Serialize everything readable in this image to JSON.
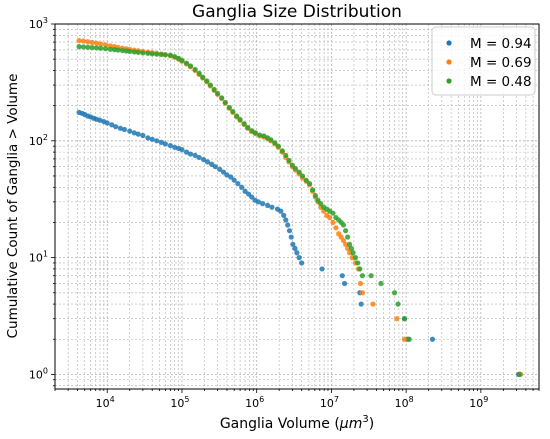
{
  "chart_data": {
    "type": "scatter",
    "title": "Ganglia Size Distribution",
    "xlabel_main": "Ganglia Volume (",
    "xlabel_mu": "μm",
    "xlabel_exp": "3",
    "xlabel_close": ")",
    "ylabel": "Cumulative Count of Ganglia > Volume",
    "xscale": "log",
    "yscale": "log",
    "xlim": [
      2000,
      6000000000
    ],
    "ylim": [
      0.75,
      1000
    ],
    "x_ticks": [
      {
        "value": 10000,
        "mantissa": "10",
        "exp": "4"
      },
      {
        "value": 100000,
        "mantissa": "10",
        "exp": "5"
      },
      {
        "value": 1000000,
        "mantissa": "10",
        "exp": "6"
      },
      {
        "value": 10000000,
        "mantissa": "10",
        "exp": "7"
      },
      {
        "value": 100000000,
        "mantissa": "10",
        "exp": "8"
      },
      {
        "value": 1000000000,
        "mantissa": "10",
        "exp": "9"
      }
    ],
    "y_ticks": [
      {
        "value": 1,
        "mantissa": "10",
        "exp": "0"
      },
      {
        "value": 10,
        "mantissa": "10",
        "exp": "1"
      },
      {
        "value": 100,
        "mantissa": "10",
        "exp": "2"
      },
      {
        "value": 1000,
        "mantissa": "10",
        "exp": "3"
      }
    ],
    "grid": true,
    "legend_position": "top-right",
    "series": [
      {
        "name": "M = 0.94",
        "color": "#1f77b4",
        "points": [
          [
            4200,
            175
          ],
          [
            4600,
            172
          ],
          [
            5000,
            168
          ],
          [
            5500,
            163
          ],
          [
            6000,
            160
          ],
          [
            6600,
            156
          ],
          [
            7200,
            153
          ],
          [
            8000,
            150
          ],
          [
            9000,
            146
          ],
          [
            10000,
            142
          ],
          [
            11500,
            137
          ],
          [
            13000,
            132
          ],
          [
            15000,
            128
          ],
          [
            17000,
            125
          ],
          [
            20000,
            121
          ],
          [
            23000,
            117
          ],
          [
            26000,
            114
          ],
          [
            30000,
            111
          ],
          [
            35000,
            106
          ],
          [
            40000,
            103
          ],
          [
            46000,
            100
          ],
          [
            53000,
            97
          ],
          [
            60000,
            94
          ],
          [
            70000,
            91
          ],
          [
            80000,
            88
          ],
          [
            90000,
            86
          ],
          [
            100000,
            84
          ],
          [
            115000,
            80
          ],
          [
            130000,
            77
          ],
          [
            150000,
            75
          ],
          [
            170000,
            72
          ],
          [
            195000,
            69
          ],
          [
            220000,
            66
          ],
          [
            250000,
            63
          ],
          [
            280000,
            60
          ],
          [
            320000,
            57
          ],
          [
            360000,
            54
          ],
          [
            400000,
            51
          ],
          [
            450000,
            49
          ],
          [
            500000,
            46
          ],
          [
            560000,
            43
          ],
          [
            630000,
            40
          ],
          [
            700000,
            37
          ],
          [
            780000,
            35
          ],
          [
            860000,
            33
          ],
          [
            950000,
            31
          ],
          [
            1050000,
            30
          ],
          [
            1200000,
            29
          ],
          [
            1400000,
            28
          ],
          [
            1600000,
            27
          ],
          [
            1900000,
            26
          ],
          [
            2100000,
            25
          ],
          [
            2300000,
            23
          ],
          [
            2450000,
            21
          ],
          [
            2600000,
            19
          ],
          [
            2750000,
            17
          ],
          [
            2900000,
            15
          ],
          [
            3050000,
            13
          ],
          [
            3250000,
            12
          ],
          [
            3450000,
            11
          ],
          [
            3700000,
            10
          ],
          [
            4000000,
            9
          ],
          [
            7500000,
            8
          ],
          [
            14000000,
            7
          ],
          [
            15000000,
            6
          ],
          [
            24000000,
            5
          ],
          [
            25000000,
            4
          ],
          [
            95000000,
            3
          ],
          [
            105000000,
            2
          ],
          [
            225000000,
            2
          ],
          [
            3200000000,
            1
          ]
        ]
      },
      {
        "name": "M = 0.69",
        "color": "#ff7f0e",
        "points": [
          [
            4200,
            720
          ],
          [
            4800,
            715
          ],
          [
            5500,
            705
          ],
          [
            6300,
            695
          ],
          [
            7200,
            685
          ],
          [
            8200,
            675
          ],
          [
            9500,
            663
          ],
          [
            11000,
            650
          ],
          [
            12500,
            640
          ],
          [
            14000,
            630
          ],
          [
            16000,
            620
          ],
          [
            18000,
            612
          ],
          [
            20000,
            605
          ],
          [
            23000,
            597
          ],
          [
            26000,
            590
          ],
          [
            30000,
            582
          ],
          [
            35000,
            575
          ],
          [
            40000,
            568
          ],
          [
            46000,
            560
          ],
          [
            53000,
            553
          ],
          [
            60000,
            545
          ],
          [
            70000,
            535
          ],
          [
            80000,
            520
          ],
          [
            90000,
            500
          ],
          [
            100000,
            480
          ],
          [
            115000,
            455
          ],
          [
            130000,
            430
          ],
          [
            150000,
            400
          ],
          [
            170000,
            370
          ],
          [
            190000,
            345
          ],
          [
            215000,
            320
          ],
          [
            240000,
            295
          ],
          [
            270000,
            270
          ],
          [
            300000,
            250
          ],
          [
            340000,
            230
          ],
          [
            380000,
            210
          ],
          [
            430000,
            190
          ],
          [
            480000,
            175
          ],
          [
            540000,
            160
          ],
          [
            600000,
            150
          ],
          [
            680000,
            138
          ],
          [
            760000,
            128
          ],
          [
            860000,
            120
          ],
          [
            960000,
            115
          ],
          [
            1100000,
            110
          ],
          [
            1250000,
            108
          ],
          [
            1400000,
            104
          ],
          [
            1550000,
            100
          ],
          [
            1750000,
            94
          ],
          [
            1950000,
            88
          ],
          [
            2200000,
            80
          ],
          [
            2450000,
            72
          ],
          [
            2700000,
            66
          ],
          [
            3000000,
            60
          ],
          [
            3300000,
            56
          ],
          [
            3700000,
            52
          ],
          [
            4100000,
            48
          ],
          [
            4600000,
            45
          ],
          [
            5100000,
            42
          ],
          [
            5600000,
            37
          ],
          [
            6100000,
            33
          ],
          [
            6600000,
            30
          ],
          [
            7200000,
            27
          ],
          [
            7900000,
            25
          ],
          [
            8700000,
            23
          ],
          [
            9500000,
            22
          ],
          [
            10500000,
            20
          ],
          [
            11500000,
            18
          ],
          [
            12500000,
            16
          ],
          [
            13500000,
            15
          ],
          [
            14500000,
            14
          ],
          [
            15500000,
            13
          ],
          [
            16500000,
            12
          ],
          [
            17500000,
            11
          ],
          [
            19000000,
            10
          ],
          [
            21000000,
            9
          ],
          [
            23000000,
            8
          ],
          [
            24500000,
            6
          ],
          [
            26000000,
            5
          ],
          [
            36000000,
            4
          ],
          [
            75000000,
            3
          ],
          [
            95000000,
            2
          ],
          [
            3400000000,
            1
          ]
        ]
      },
      {
        "name": "M = 0.48",
        "color": "#2ca02c",
        "points": [
          [
            4200,
            640
          ],
          [
            4800,
            636
          ],
          [
            5500,
            632
          ],
          [
            6300,
            628
          ],
          [
            7200,
            624
          ],
          [
            8200,
            620
          ],
          [
            9500,
            615
          ],
          [
            11000,
            608
          ],
          [
            12500,
            603
          ],
          [
            14000,
            598
          ],
          [
            16000,
            592
          ],
          [
            18000,
            587
          ],
          [
            20000,
            582
          ],
          [
            23000,
            577
          ],
          [
            26000,
            572
          ],
          [
            30000,
            566
          ],
          [
            35000,
            561
          ],
          [
            40000,
            556
          ],
          [
            46000,
            552
          ],
          [
            53000,
            549
          ],
          [
            60000,
            546
          ],
          [
            70000,
            540
          ],
          [
            80000,
            525
          ],
          [
            90000,
            508
          ],
          [
            100000,
            488
          ],
          [
            115000,
            462
          ],
          [
            130000,
            437
          ],
          [
            150000,
            408
          ],
          [
            170000,
            378
          ],
          [
            190000,
            350
          ],
          [
            215000,
            325
          ],
          [
            240000,
            300
          ],
          [
            270000,
            275
          ],
          [
            300000,
            254
          ],
          [
            340000,
            233
          ],
          [
            380000,
            213
          ],
          [
            430000,
            193
          ],
          [
            480000,
            178
          ],
          [
            540000,
            163
          ],
          [
            600000,
            152
          ],
          [
            680000,
            140
          ],
          [
            760000,
            130
          ],
          [
            860000,
            122
          ],
          [
            960000,
            117
          ],
          [
            1100000,
            112
          ],
          [
            1250000,
            110
          ],
          [
            1400000,
            106
          ],
          [
            1550000,
            102
          ],
          [
            1750000,
            96
          ],
          [
            1950000,
            90
          ],
          [
            2200000,
            82
          ],
          [
            2450000,
            75
          ],
          [
            2700000,
            68
          ],
          [
            3000000,
            62
          ],
          [
            3300000,
            58
          ],
          [
            3700000,
            54
          ],
          [
            4100000,
            50
          ],
          [
            4600000,
            46
          ],
          [
            5100000,
            43
          ],
          [
            5600000,
            38
          ],
          [
            6100000,
            34
          ],
          [
            6600000,
            31
          ],
          [
            7200000,
            29
          ],
          [
            7900000,
            27
          ],
          [
            8700000,
            26
          ],
          [
            9500000,
            25
          ],
          [
            10500000,
            24
          ],
          [
            11500000,
            22
          ],
          [
            12500000,
            21
          ],
          [
            13500000,
            20
          ],
          [
            14500000,
            19
          ],
          [
            15500000,
            17
          ],
          [
            16500000,
            15
          ],
          [
            17500000,
            13
          ],
          [
            18500000,
            12
          ],
          [
            19500000,
            11
          ],
          [
            21000000,
            10
          ],
          [
            22500000,
            9
          ],
          [
            24000000,
            8
          ],
          [
            26000000,
            7
          ],
          [
            34000000,
            7
          ],
          [
            46000000,
            6
          ],
          [
            70000000,
            5
          ],
          [
            78000000,
            4
          ],
          [
            95000000,
            3
          ],
          [
            110000000,
            2
          ],
          [
            3300000000,
            1
          ]
        ]
      }
    ]
  }
}
